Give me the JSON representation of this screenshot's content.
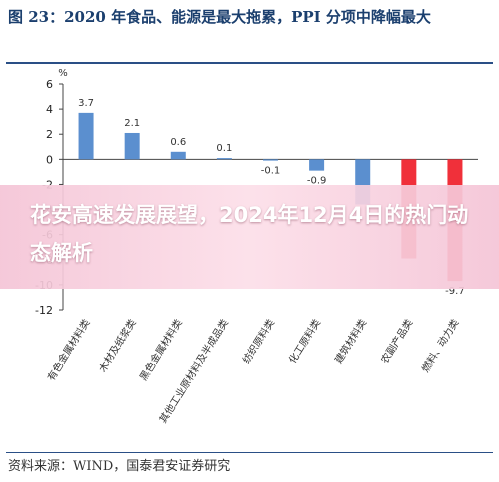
{
  "figure": {
    "title": "图 23：2020 年食品、能源是最大拖累，PPI 分项中降幅最大",
    "source": "资料来源：WIND，国泰君安证券研究"
  },
  "overlay": {
    "text": "花安高速发展展望，2024年12月4日的热门动态解析"
  },
  "chart_data": {
    "type": "bar",
    "ylabel": "%",
    "ylim": [
      -12,
      6
    ],
    "yticks": [
      6,
      4,
      2,
      0,
      -2,
      -4,
      -6,
      -8,
      -10,
      -12
    ],
    "grid": false,
    "categories": [
      "有色金属材料类",
      "木材及纸浆类",
      "黑色金属材料类",
      "其他工业原材料及半成品类",
      "纺织原料类",
      "化工原料类",
      "建筑材料类",
      "农副产品类",
      "燃料、动力类"
    ],
    "values": [
      3.7,
      2.1,
      0.6,
      0.1,
      -0.1,
      -0.9,
      -3.6,
      -7.9,
      -9.7
    ],
    "value_labels": [
      "3.7",
      "2.1",
      "0.6",
      "0.1",
      "-0.1",
      "-0.9",
      "",
      "",
      "-9.7"
    ],
    "colors": {
      "blue": "#5b8fcf",
      "red": "#f0303a"
    },
    "bar_colors": [
      "blue",
      "blue",
      "blue",
      "blue",
      "blue",
      "blue",
      "blue",
      "red",
      "red"
    ]
  }
}
